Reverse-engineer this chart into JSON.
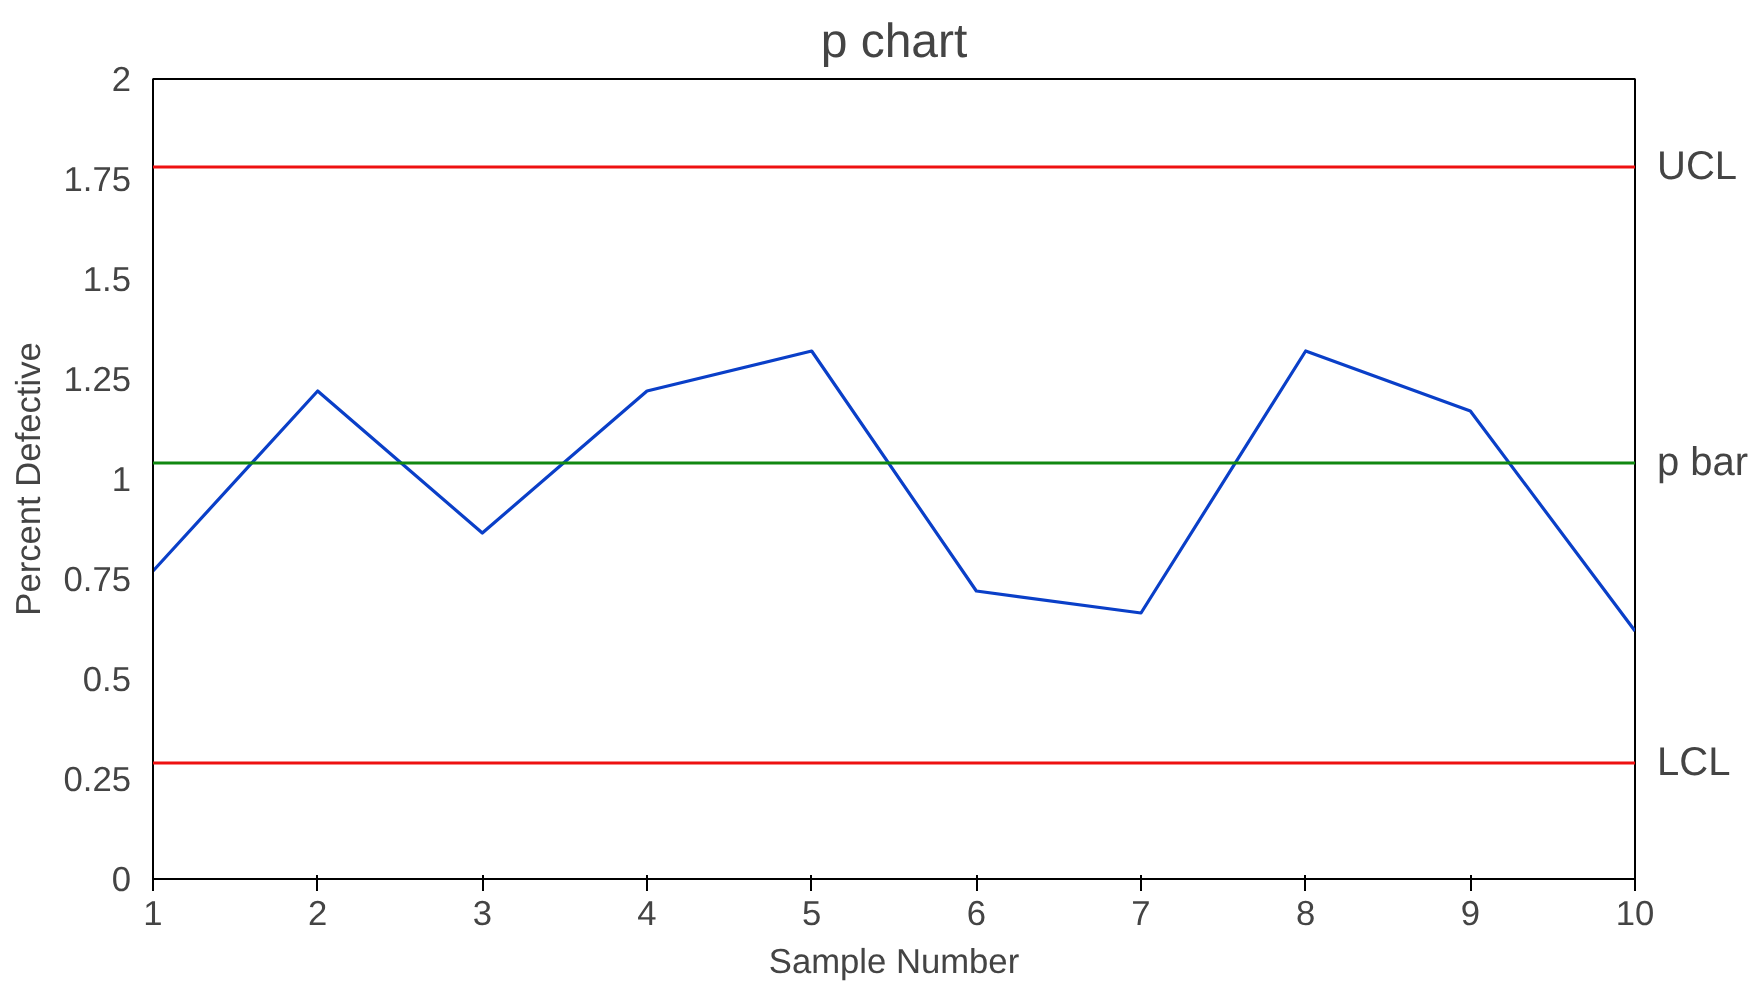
{
  "chart_data": {
    "type": "line",
    "title": "p chart",
    "xlabel": "Sample Number",
    "ylabel": "Percent Defective",
    "x": [
      1,
      2,
      3,
      4,
      5,
      6,
      7,
      8,
      9,
      10
    ],
    "series": [
      {
        "color": "#0a3fc8",
        "values": [
          0.77,
          1.22,
          0.865,
          1.22,
          1.32,
          0.72,
          0.665,
          1.32,
          1.17,
          0.62
        ]
      }
    ],
    "xlim": [
      1,
      10
    ],
    "xticks": [
      1,
      2,
      3,
      4,
      5,
      6,
      7,
      8,
      9,
      10
    ],
    "ylim": [
      0,
      2
    ],
    "yticks": [
      0,
      0.25,
      0.5,
      0.75,
      1,
      1.25,
      1.5,
      1.75,
      2
    ],
    "ref_lines": [
      {
        "axis": "y",
        "value": 1.78,
        "label": "UCL",
        "color": "#ee1111"
      },
      {
        "axis": "y",
        "value": 1.04,
        "label": "p bar",
        "color": "#118811"
      },
      {
        "axis": "y",
        "value": 0.29,
        "label": "LCL",
        "color": "#ee1111"
      }
    ],
    "grid": false,
    "marker": "none",
    "line_style": "solid"
  }
}
